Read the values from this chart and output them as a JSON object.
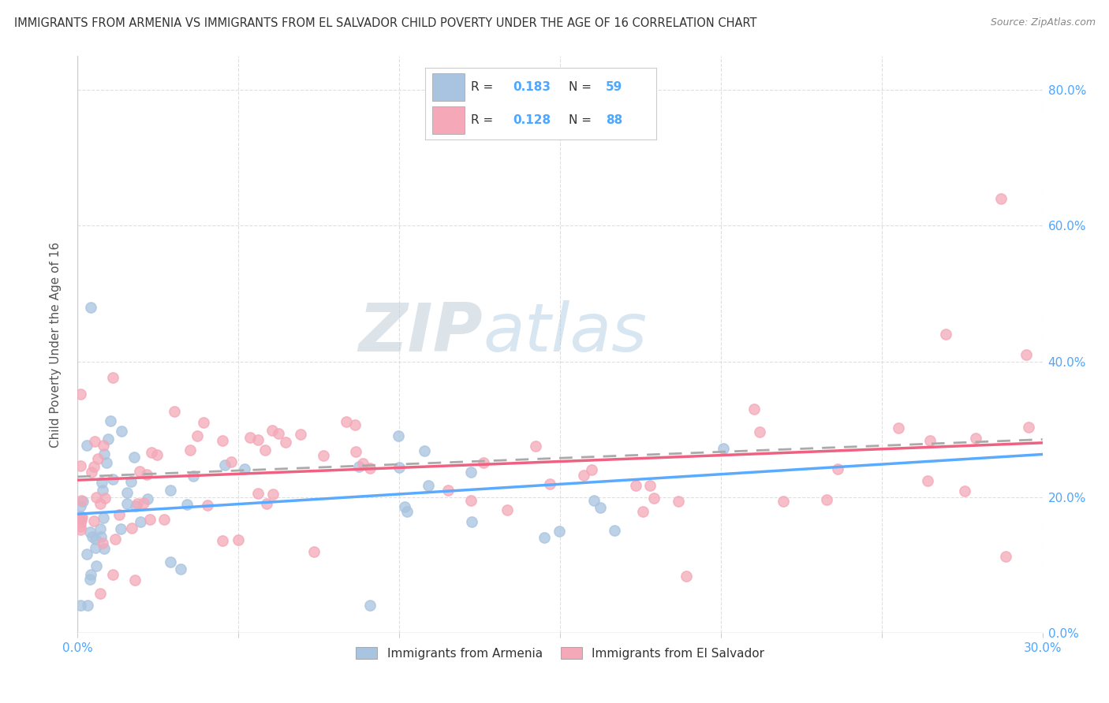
{
  "title": "IMMIGRANTS FROM ARMENIA VS IMMIGRANTS FROM EL SALVADOR CHILD POVERTY UNDER THE AGE OF 16 CORRELATION CHART",
  "source": "Source: ZipAtlas.com",
  "ylabel": "Child Poverty Under the Age of 16",
  "legend_r1": "R = 0.183",
  "legend_n1": "N = 59",
  "legend_r2": "R = 0.128",
  "legend_n2": "N = 88",
  "legend_label1": "Immigrants from Armenia",
  "legend_label2": "Immigrants from El Salvador",
  "color_armenia": "#a8c4e0",
  "color_el_salvador": "#f4a8b8",
  "color_blue_text": "#4da6ff",
  "watermark_zip": "ZIP",
  "watermark_atlas": "atlas",
  "xlim": [
    0.0,
    0.3
  ],
  "ylim": [
    0.0,
    0.85
  ],
  "ytick_vals": [
    0.0,
    0.2,
    0.4,
    0.6,
    0.8
  ],
  "bg_color": "#ffffff",
  "grid_color": "#d8d8d8"
}
